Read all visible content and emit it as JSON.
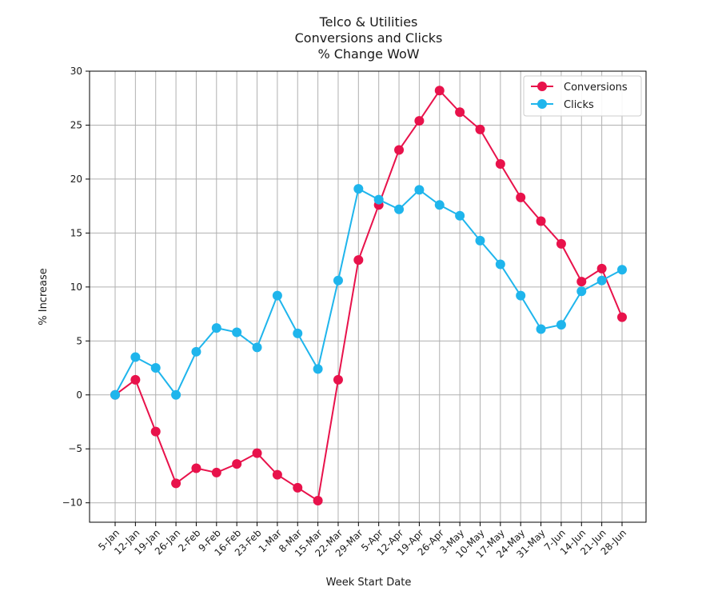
{
  "chart_data": {
    "type": "line",
    "title": [
      "Telco & Utilities",
      "Conversions and Clicks",
      "% Change WoW"
    ],
    "xlabel": "Week Start Date",
    "ylabel": "% Increase",
    "categories": [
      "5-Jan",
      "12-Jan",
      "19-Jan",
      "26-Jan",
      "2-Feb",
      "9-Feb",
      "16-Feb",
      "23-Feb",
      "1-Mar",
      "8-Mar",
      "15-Mar",
      "22-Mar",
      "29-Mar",
      "5-Apr",
      "12-Apr",
      "19-Apr",
      "26-Apr",
      "3-May",
      "10-May",
      "17-May",
      "24-May",
      "31-May",
      "7-Jun",
      "14-Jun",
      "21-Jun",
      "28-Jun"
    ],
    "ylim": [
      -11.8,
      30
    ],
    "yticks": [
      -10,
      -5,
      0,
      5,
      10,
      15,
      20,
      25,
      30
    ],
    "ytick_labels": [
      "−10",
      "−5",
      "0",
      "5",
      "10",
      "15",
      "20",
      "25",
      "30"
    ],
    "grid": true,
    "legend_position": "top-right",
    "series": [
      {
        "name": "Conversions",
        "color": "#e8124b",
        "values": [
          0,
          1.4,
          -3.4,
          -8.2,
          -6.8,
          -7.2,
          -6.4,
          -5.4,
          -7.4,
          -8.6,
          -9.8,
          1.4,
          12.5,
          17.6,
          22.7,
          25.4,
          28.2,
          26.2,
          24.6,
          21.4,
          18.3,
          16.1,
          14.0,
          10.5,
          11.7,
          7.2
        ]
      },
      {
        "name": "Clicks",
        "color": "#1fb5ec",
        "values": [
          0,
          3.5,
          2.5,
          0,
          4.0,
          6.2,
          5.8,
          4.4,
          9.2,
          5.7,
          2.4,
          10.6,
          19.1,
          18.1,
          17.2,
          19.0,
          17.6,
          16.6,
          14.3,
          12.1,
          9.2,
          6.1,
          6.5,
          9.6,
          10.6,
          11.6
        ]
      }
    ]
  }
}
